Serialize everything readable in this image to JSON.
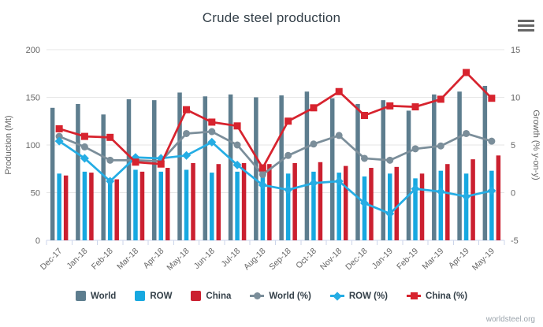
{
  "chart": {
    "title": "Crude steel production",
    "watermark": "worldsteel.org",
    "context_menu_icon": "hamburger-icon"
  },
  "colors": {
    "world_bar": "#5d7d8e",
    "row_bar": "#17a8e0",
    "china_bar": "#cb2030",
    "world_line": "#7b8e9a",
    "row_line": "#25ade4",
    "china_line": "#d7232e",
    "grid": "#e6e6e6",
    "axis_line": "#ccd6eb",
    "text_dark": "#333f48",
    "text_axis": "#666666"
  },
  "chart_data": {
    "type": "combo-bar-line",
    "grid": true,
    "legend_position": "bottom",
    "categories": [
      "Dec-17",
      "Jan-18",
      "Feb-18",
      "Mar-18",
      "Apr-18",
      "May-18",
      "Jun-18",
      "Jul-18",
      "Aug-18",
      "Sep-18",
      "Oct-18",
      "Nov-18",
      "Dec-18",
      "Jan-19",
      "Feb-19",
      "Mar-19",
      "Apr-19",
      "May-19"
    ],
    "left_axis": {
      "title": "Production (Mt)",
      "min": 0,
      "max": 200,
      "ticks": [
        0,
        50,
        100,
        150,
        200
      ]
    },
    "right_axis": {
      "title": "Growth (% y-on-y)",
      "min": -5,
      "max": 15,
      "ticks": [
        -5,
        0,
        5,
        10,
        15
      ]
    },
    "bar_series": [
      {
        "name": "World",
        "key": "world",
        "axis": "left",
        "color": "#5d7d8e",
        "values": [
          139,
          143,
          132,
          148,
          147,
          155,
          151,
          153,
          150,
          152,
          156,
          149,
          143,
          147,
          136,
          153,
          156,
          162
        ]
      },
      {
        "name": "ROW",
        "key": "row",
        "axis": "left",
        "color": "#17a8e0",
        "values": [
          70,
          72,
          65,
          74,
          72,
          74,
          71,
          72,
          71,
          70,
          72,
          71,
          67,
          70,
          65,
          73,
          70,
          73
        ]
      },
      {
        "name": "China",
        "key": "china",
        "axis": "left",
        "color": "#cb2030",
        "values": [
          68,
          71,
          64,
          72,
          76,
          81,
          80,
          81,
          80,
          81,
          82,
          78,
          76,
          77,
          70,
          80,
          85,
          89
        ]
      }
    ],
    "line_series": [
      {
        "name": "World (%)",
        "key": "world-pct",
        "axis": "right",
        "color": "#7b8e9a",
        "marker": "circle",
        "values": [
          5.9,
          4.8,
          3.4,
          3.4,
          3.3,
          6.2,
          6.4,
          5.0,
          1.9,
          3.9,
          5.1,
          6.0,
          3.6,
          3.4,
          4.6,
          4.9,
          6.2,
          5.4
        ]
      },
      {
        "name": "ROW (%)",
        "key": "row-pct",
        "axis": "right",
        "color": "#25ade4",
        "marker": "diamond",
        "values": [
          5.4,
          3.6,
          1.2,
          3.7,
          3.6,
          3.9,
          5.3,
          2.9,
          0.8,
          0.3,
          1.0,
          1.2,
          -1.1,
          -2.2,
          0.4,
          0.1,
          -0.4,
          0.2
        ]
      },
      {
        "name": "China (%)",
        "key": "china-pct",
        "axis": "right",
        "color": "#d7232e",
        "marker": "square",
        "values": [
          6.7,
          5.9,
          5.8,
          3.2,
          3.0,
          8.7,
          7.4,
          7.0,
          2.6,
          7.5,
          8.9,
          10.6,
          8.1,
          9.1,
          9.0,
          9.8,
          12.6,
          9.9
        ]
      }
    ]
  }
}
